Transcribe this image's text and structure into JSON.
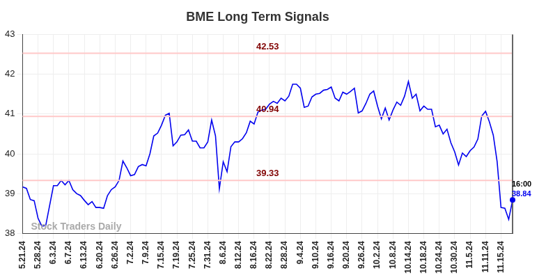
{
  "chart_data": {
    "type": "line",
    "title": "BME Long Term Signals",
    "categories": [
      "5.21.24",
      null,
      null,
      null,
      "5.28.24",
      null,
      null,
      null,
      "6.3.24",
      null,
      null,
      null,
      "6.7.24",
      null,
      null,
      null,
      "6.13.24",
      null,
      null,
      null,
      "6.20.24",
      null,
      null,
      null,
      "6.26.24",
      null,
      null,
      null,
      "7.2.24",
      null,
      null,
      null,
      "7.9.24",
      null,
      null,
      null,
      "7.15.24",
      null,
      null,
      null,
      "7.19.24",
      null,
      null,
      null,
      "7.25.24",
      null,
      null,
      null,
      "7.31.24",
      null,
      null,
      null,
      "8.6.24",
      null,
      null,
      null,
      "8.12.24",
      null,
      null,
      null,
      "8.16.24",
      null,
      null,
      null,
      "8.22.24",
      null,
      null,
      null,
      "8.28.24",
      null,
      null,
      null,
      "9.4.24",
      null,
      null,
      null,
      "9.10.24",
      null,
      null,
      null,
      "9.16.24",
      null,
      null,
      null,
      "9.20.24",
      null,
      null,
      null,
      "9.26.24",
      null,
      null,
      null,
      "10.2.24",
      null,
      null,
      null,
      "10.8.24",
      null,
      null,
      null,
      "10.14.24",
      null,
      null,
      null,
      "10.18.24",
      null,
      null,
      null,
      "10.24.24",
      null,
      null,
      null,
      "10.30.24",
      null,
      null,
      null,
      "11.5.24",
      null,
      null,
      null,
      "11.11.24",
      null,
      null,
      null,
      "11.15.24",
      null,
      null,
      null
    ],
    "values": [
      39.17,
      39.13,
      38.85,
      38.82,
      38.38,
      38.18,
      38.2,
      38.7,
      39.2,
      39.2,
      39.33,
      39.22,
      39.33,
      39.1,
      39.0,
      38.95,
      38.83,
      38.72,
      38.8,
      38.65,
      38.65,
      38.63,
      38.95,
      39.1,
      39.17,
      39.33,
      39.82,
      39.65,
      39.45,
      39.48,
      39.68,
      39.73,
      39.7,
      40.0,
      40.45,
      40.52,
      40.72,
      40.97,
      41.02,
      40.2,
      40.3,
      40.47,
      40.48,
      40.6,
      40.32,
      40.32,
      40.15,
      40.15,
      40.3,
      40.85,
      40.45,
      39.12,
      39.8,
      39.55,
      40.18,
      40.3,
      40.3,
      40.38,
      40.53,
      40.82,
      40.75,
      41.05,
      41.1,
      41.12,
      41.25,
      41.32,
      41.27,
      41.4,
      41.33,
      41.45,
      41.75,
      41.75,
      41.65,
      41.17,
      41.2,
      41.43,
      41.5,
      41.52,
      41.6,
      41.62,
      41.68,
      41.4,
      41.33,
      41.55,
      41.5,
      41.57,
      41.65,
      41.03,
      41.08,
      41.27,
      41.5,
      41.58,
      41.2,
      40.88,
      41.15,
      40.85,
      41.1,
      41.3,
      41.22,
      41.45,
      41.82,
      41.4,
      41.5,
      41.08,
      41.2,
      41.12,
      41.12,
      40.68,
      40.72,
      40.5,
      40.62,
      40.28,
      40.05,
      39.72,
      40.02,
      39.93,
      40.08,
      40.17,
      40.37,
      40.95,
      41.07,
      40.8,
      40.47,
      39.8,
      38.65,
      38.63,
      38.35,
      38.84
    ],
    "color": "#0000ee",
    "ylim": [
      38,
      43
    ],
    "yticks": [
      38,
      39,
      40,
      41,
      42,
      43
    ],
    "grid": true,
    "reference_lines": [
      {
        "value": 42.53,
        "color": "#ffc8c8"
      },
      {
        "value": 40.94,
        "color": "#ffc8c8"
      },
      {
        "value": 39.33,
        "color": "#ffc8c8"
      }
    ],
    "last_point": {
      "time": "16:00",
      "value": 38.84
    },
    "watermark": "Stock Traders Daily"
  }
}
